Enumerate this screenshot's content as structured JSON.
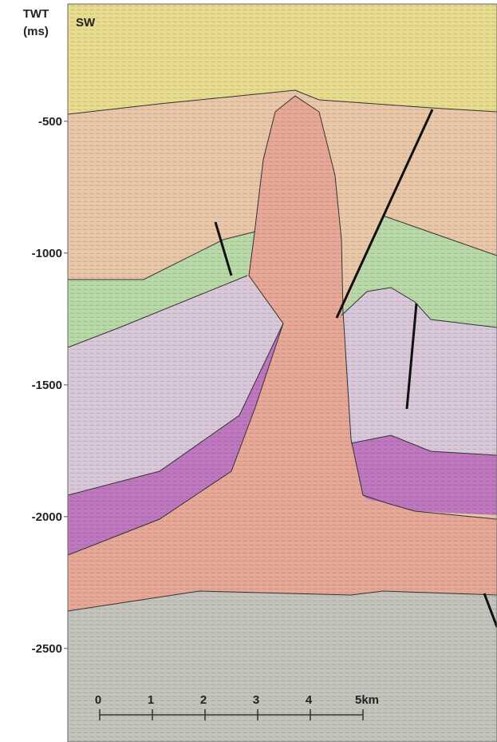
{
  "axis": {
    "title_lines": [
      "TWT",
      "(ms)"
    ],
    "lim": [
      -55,
      -2855
    ],
    "ticks": [
      -500,
      -1000,
      -1500,
      -2000,
      -2500
    ]
  },
  "section": {
    "direction": "SW"
  },
  "scale_bar": {
    "ticks": [
      0,
      1,
      2,
      3,
      4,
      {
        "value": 5,
        "label": "5km"
      }
    ]
  }
}
